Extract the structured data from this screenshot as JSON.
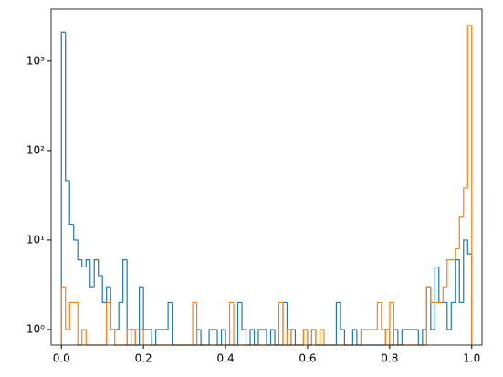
{
  "chart_data": {
    "type": "histogram",
    "bins": [
      0,
      0.01,
      0.02,
      0.03,
      0.04,
      0.05,
      0.06,
      0.07,
      0.08,
      0.09,
      0.1,
      0.11,
      0.12,
      0.13,
      0.14,
      0.15,
      0.16,
      0.17,
      0.18,
      0.19,
      0.2,
      0.21,
      0.22,
      0.23,
      0.24,
      0.25,
      0.26,
      0.27,
      0.28,
      0.29,
      0.3,
      0.31,
      0.32,
      0.33,
      0.34,
      0.35,
      0.36,
      0.37,
      0.38,
      0.39,
      0.4,
      0.41,
      0.42,
      0.43,
      0.44,
      0.45,
      0.46,
      0.47,
      0.48,
      0.49,
      0.5,
      0.51,
      0.52,
      0.53,
      0.54,
      0.55,
      0.56,
      0.57,
      0.58,
      0.59,
      0.6,
      0.61,
      0.62,
      0.63,
      0.64,
      0.65,
      0.66,
      0.67,
      0.68,
      0.69,
      0.7,
      0.71,
      0.72,
      0.73,
      0.74,
      0.75,
      0.76,
      0.77,
      0.78,
      0.79,
      0.8,
      0.81,
      0.82,
      0.83,
      0.84,
      0.85,
      0.86,
      0.87,
      0.88,
      0.89,
      0.9,
      0.91,
      0.92,
      0.93,
      0.94,
      0.95,
      0.96,
      0.97,
      0.98,
      0.99,
      1
    ],
    "series": [
      {
        "color": "#1f77b4",
        "values": [
          2100,
          46,
          15,
          10,
          6,
          5,
          6,
          3,
          6,
          4,
          2,
          3,
          1,
          1,
          2,
          6,
          0,
          1,
          0,
          3,
          1,
          1,
          0,
          1,
          1,
          1,
          2,
          0,
          0,
          0,
          0,
          0,
          0,
          1,
          0,
          0,
          1,
          1,
          0,
          1,
          0,
          0,
          0,
          2,
          1,
          0,
          1,
          0,
          1,
          1,
          0,
          1,
          0,
          0,
          2,
          0,
          1,
          0,
          0,
          1,
          0,
          1,
          0,
          0,
          0,
          0,
          0,
          2,
          1,
          0,
          0,
          1,
          0,
          0,
          0,
          0,
          0,
          0,
          0,
          1,
          0,
          1,
          0,
          1,
          1,
          1,
          1,
          0,
          1,
          3,
          1,
          5,
          2,
          2,
          1,
          2,
          6,
          2,
          10,
          7
        ]
      },
      {
        "color": "#ff7f0e",
        "values": [
          3,
          1,
          2,
          2,
          0,
          1,
          0,
          0,
          0,
          0,
          0,
          2,
          1,
          0,
          0,
          0,
          1,
          0,
          1,
          1,
          0,
          0,
          0,
          0,
          0,
          0,
          0,
          0,
          0,
          0,
          0,
          0,
          2,
          0,
          0,
          0,
          0,
          0,
          0,
          0,
          0,
          2,
          0,
          0,
          0,
          0,
          0,
          0,
          0,
          0,
          0,
          0,
          0,
          2,
          0,
          1,
          0,
          0,
          0,
          1,
          0,
          1,
          0,
          1,
          0,
          0,
          0,
          0,
          0,
          0,
          0,
          0,
          0,
          1,
          1,
          1,
          1,
          2,
          1,
          0,
          2,
          0,
          0,
          0,
          0,
          0,
          0,
          0,
          0,
          3,
          2,
          2,
          2,
          3,
          6,
          6,
          8,
          18,
          38,
          2500
        ]
      }
    ],
    "xlim": [
      -0.025,
      1.025
    ],
    "xticks": [
      {
        "value": 0,
        "label": "0.0"
      },
      {
        "value": 0.2,
        "label": "0.2"
      },
      {
        "value": 0.4,
        "label": "0.4"
      },
      {
        "value": 0.6,
        "label": "0.6"
      },
      {
        "value": 0.8,
        "label": "0.8"
      },
      {
        "value": 1,
        "label": "1.0"
      }
    ],
    "ylim": [
      0.67,
      3800
    ],
    "yscale": "log",
    "yticks": [
      {
        "value": 1,
        "label": "10⁰"
      },
      {
        "value": 10,
        "label": "10¹"
      },
      {
        "value": 100,
        "label": "10²"
      },
      {
        "value": 1000,
        "label": "10³"
      }
    ]
  }
}
